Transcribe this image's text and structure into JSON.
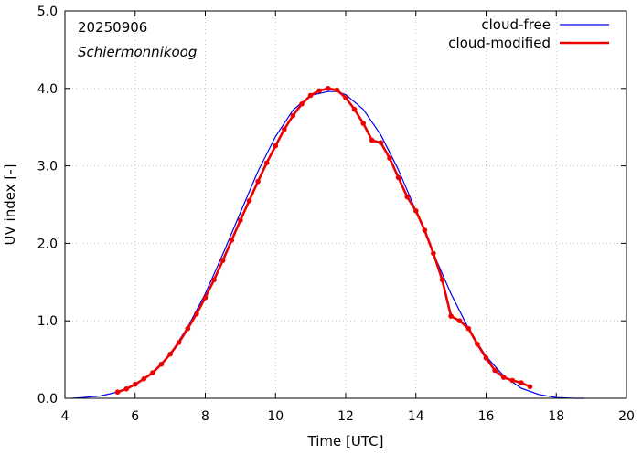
{
  "chart_data": {
    "type": "line",
    "title": "",
    "xlabel": "Time  [UTC]",
    "ylabel": "UV index  [-]",
    "xlim": [
      4,
      20
    ],
    "ylim": [
      0,
      5
    ],
    "xticks": [
      4,
      6,
      8,
      10,
      12,
      14,
      16,
      18,
      20
    ],
    "yticks": [
      0,
      1,
      2,
      3,
      4,
      5
    ],
    "ytick_labels": [
      "0.0",
      "1.0",
      "2.0",
      "3.0",
      "4.0",
      "5.0"
    ],
    "grid": true,
    "legend_position": "top-right",
    "annotations": [
      "20250906",
      "Schiermonnikoog"
    ],
    "series": [
      {
        "name": "cloud-free",
        "color": "#0000ee",
        "markers": false,
        "x": [
          4.2,
          4.5,
          5.0,
          5.5,
          6.0,
          6.5,
          7.0,
          7.5,
          8.0,
          8.5,
          9.0,
          9.5,
          10.0,
          10.5,
          11.0,
          11.5,
          11.75,
          12.0,
          12.5,
          13.0,
          13.5,
          14.0,
          14.5,
          15.0,
          15.5,
          16.0,
          16.5,
          17.0,
          17.5,
          18.0,
          18.5,
          18.8
        ],
        "y": [
          0.0,
          0.01,
          0.03,
          0.08,
          0.17,
          0.33,
          0.57,
          0.92,
          1.35,
          1.86,
          2.4,
          2.93,
          3.38,
          3.72,
          3.91,
          3.96,
          3.96,
          3.92,
          3.73,
          3.4,
          2.95,
          2.42,
          1.87,
          1.35,
          0.9,
          0.54,
          0.29,
          0.13,
          0.05,
          0.01,
          0.0,
          0.0
        ]
      },
      {
        "name": "cloud-modified",
        "color": "#ee0000",
        "markers": true,
        "x": [
          5.5,
          5.75,
          6.0,
          6.25,
          6.5,
          6.75,
          7.0,
          7.25,
          7.5,
          7.75,
          8.0,
          8.25,
          8.5,
          8.75,
          9.0,
          9.25,
          9.5,
          9.75,
          10.0,
          10.25,
          10.5,
          10.75,
          11.0,
          11.25,
          11.5,
          11.75,
          12.0,
          12.25,
          12.5,
          12.75,
          13.0,
          13.25,
          13.5,
          13.75,
          14.0,
          14.25,
          14.5,
          14.75,
          15.0,
          15.25,
          15.5,
          15.75,
          16.0,
          16.25,
          16.5,
          16.75,
          17.0,
          17.25
        ],
        "y": [
          0.08,
          0.12,
          0.18,
          0.25,
          0.33,
          0.44,
          0.57,
          0.72,
          0.9,
          1.09,
          1.3,
          1.53,
          1.78,
          2.04,
          2.3,
          2.55,
          2.8,
          3.04,
          3.26,
          3.47,
          3.65,
          3.8,
          3.91,
          3.97,
          4.0,
          3.98,
          3.88,
          3.73,
          3.55,
          3.33,
          3.3,
          3.1,
          2.85,
          2.6,
          2.42,
          2.17,
          1.87,
          1.53,
          1.06,
          1.0,
          0.9,
          0.7,
          0.52,
          0.36,
          0.27,
          0.23,
          0.2,
          0.15
        ]
      }
    ]
  }
}
